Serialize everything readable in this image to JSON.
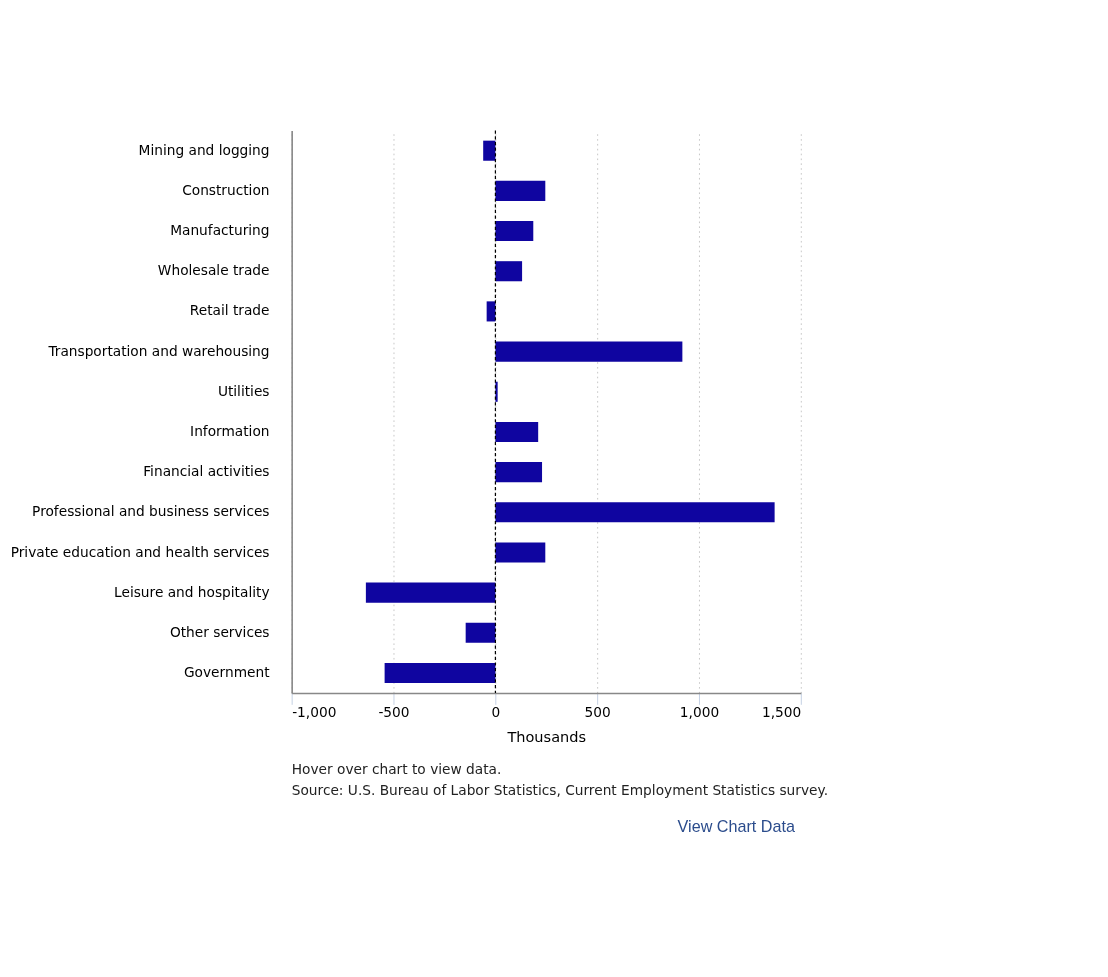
{
  "chart_data": {
    "type": "bar",
    "orientation": "horizontal",
    "categories": [
      "Mining and logging",
      "Construction",
      "Manufacturing",
      "Wholesale trade",
      "Retail trade",
      "Transportation and warehousing",
      "Utilities",
      "Information",
      "Financial activities",
      "Professional and business services",
      "Private education and health services",
      "Leisure and hospitality",
      "Other services",
      "Government"
    ],
    "values": [
      -60,
      245,
      186,
      131,
      -43,
      918,
      11,
      210,
      229,
      1371,
      245,
      -636,
      -146,
      -544
    ],
    "color": "#0f05a0",
    "xlabel": "Thousands",
    "xlim": [
      -1000,
      1500
    ],
    "xticks": [
      {
        "value": -1000,
        "label": "-1,000"
      },
      -500,
      0,
      500,
      {
        "value": 1000,
        "label": "1,000"
      },
      {
        "value": 1500,
        "label": "1,500"
      }
    ],
    "grid": "x",
    "ref_lines": [
      {
        "axis": "x",
        "value": 0,
        "color": "#000000",
        "line_style": "dashed"
      }
    ],
    "annotations": [
      "Hover over chart to view data.",
      "Source: U.S. Bureau of Labor Statistics, Current Employment Statistics survey.",
      "View Chart Data"
    ]
  }
}
